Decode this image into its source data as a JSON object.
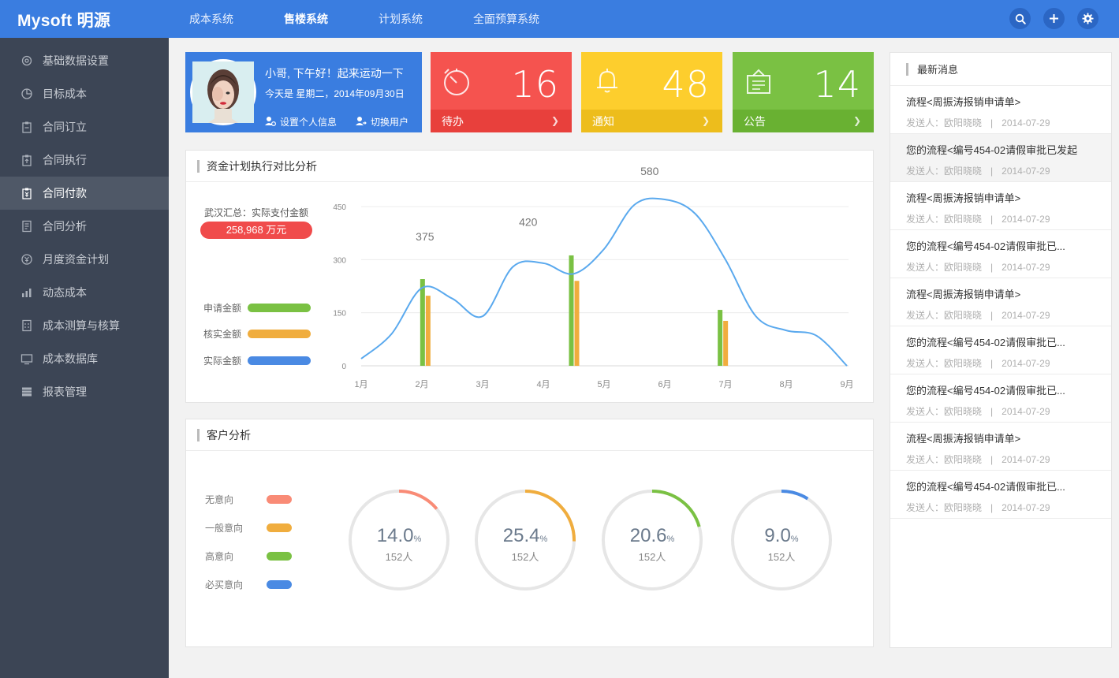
{
  "app": {
    "logo": "Mysoft 明源"
  },
  "topnav": [
    "成本系统",
    "售楼系统",
    "计划系统",
    "全面预算系统"
  ],
  "topnav_active": 1,
  "top_icons": [
    "search-icon",
    "plus-icon",
    "gear-icon"
  ],
  "sidebar": {
    "items": [
      {
        "label": "基础数据设置",
        "icon": "gear-icon"
      },
      {
        "label": "目标成本",
        "icon": "pie-icon"
      },
      {
        "label": "合同订立",
        "icon": "clipboard-icon"
      },
      {
        "label": "合同执行",
        "icon": "clipboard-upload-icon"
      },
      {
        "label": "合同付款",
        "icon": "clipboard-yen-icon"
      },
      {
        "label": "合同分析",
        "icon": "document-icon"
      },
      {
        "label": "月度资金计划",
        "icon": "yen-circle-icon"
      },
      {
        "label": "动态成本",
        "icon": "bars-icon"
      },
      {
        "label": "成本测算与核算",
        "icon": "calculator-icon"
      },
      {
        "label": "成本数据库",
        "icon": "monitor-icon"
      },
      {
        "label": "报表管理",
        "icon": "table-icon"
      }
    ],
    "active": 4
  },
  "profile": {
    "greeting": "小哥, 下午好！起来运动一下",
    "date_line": "今天是 星期二，2014年09月30日",
    "settings_link": "设置个人信息",
    "switch_link": "切换用户"
  },
  "stats": [
    {
      "label": "待办",
      "value": "16",
      "color": "#f5534f",
      "foot_color": "#e8403c",
      "icon": "timer-icon"
    },
    {
      "label": "通知",
      "value": "48",
      "color": "#fdce2d",
      "foot_color": "#edbd1c",
      "icon": "bell-icon"
    },
    {
      "label": "公告",
      "value": "14",
      "color": "#7ac143",
      "foot_color": "#69b132",
      "icon": "board-icon"
    }
  ],
  "fund_panel": {
    "title": "资金计划执行对比分析",
    "total_label": "武汉汇总：实际支付金额",
    "total_value": "258,968 万元",
    "legend": [
      {
        "label": "申请金额",
        "color": "#7ac143"
      },
      {
        "label": "核实金额",
        "color": "#f0ad3e"
      },
      {
        "label": "实际金额",
        "color": "#4a8ae3"
      }
    ]
  },
  "chart_data": {
    "type": "line",
    "x": [
      "1月",
      "2月",
      "3月",
      "4月",
      "5月",
      "6月",
      "7月",
      "8月",
      "9月"
    ],
    "yticks": [
      0,
      150,
      300,
      450
    ],
    "ylim": [
      0,
      450
    ],
    "grid": true,
    "line": {
      "color": "#5aa9ee",
      "points": [
        [
          1.0,
          20
        ],
        [
          1.5,
          90
        ],
        [
          2.0,
          220
        ],
        [
          2.5,
          190
        ],
        [
          3.0,
          140
        ],
        [
          3.5,
          280
        ],
        [
          4.0,
          290
        ],
        [
          4.5,
          260
        ],
        [
          5.0,
          330
        ],
        [
          5.5,
          455
        ],
        [
          6.0,
          480
        ],
        [
          6.5,
          430
        ],
        [
          7.0,
          300
        ],
        [
          7.5,
          140
        ],
        [
          8.0,
          100
        ],
        [
          8.5,
          85
        ],
        [
          9.0,
          0
        ]
      ],
      "labels": [
        {
          "x": 2.05,
          "y": 375,
          "text": "375"
        },
        {
          "x": 3.75,
          "y": 420,
          "text": "420"
        },
        {
          "x": 5.75,
          "y": 580,
          "text": "580"
        }
      ]
    },
    "bars": [
      {
        "x": 2.05,
        "apply": 245,
        "verified": 198
      },
      {
        "x": 4.5,
        "apply": 312,
        "verified": 240
      },
      {
        "x": 6.95,
        "apply": 158,
        "verified": 127
      }
    ]
  },
  "customer_panel": {
    "title": "客户分析",
    "legend": [
      {
        "label": "无意向",
        "color": "#f98b76"
      },
      {
        "label": "一般意向",
        "color": "#f0ad3e"
      },
      {
        "label": "高意向",
        "color": "#7ac143"
      },
      {
        "label": "必买意向",
        "color": "#4a8ae3"
      }
    ],
    "rings": [
      {
        "value": "14.0",
        "percent": 14.0,
        "unit": "%",
        "count": "152人",
        "color": "#f98b76"
      },
      {
        "value": "25.4",
        "percent": 25.4,
        "unit": "%",
        "count": "152人",
        "color": "#f0ad3e"
      },
      {
        "value": "20.6",
        "percent": 20.6,
        "unit": "%",
        "count": "152人",
        "color": "#7ac143"
      },
      {
        "value": "9.0",
        "percent": 9.0,
        "unit": "%",
        "count": "152人",
        "color": "#4a8ae3"
      }
    ]
  },
  "news": {
    "title": "最新消息",
    "items": [
      {
        "title": "流程<周振涛报销申请单>",
        "sender": "发送人：欧阳晓晓",
        "sep": "|",
        "date": "2014-07-29"
      },
      {
        "title": "您的流程<编号454-02请假审批已发起",
        "sender": "发送人：欧阳晓晓",
        "sep": "|",
        "date": "2014-07-29"
      },
      {
        "title": "流程<周振涛报销申请单>",
        "sender": "发送人：欧阳晓晓",
        "sep": "|",
        "date": "2014-07-29"
      },
      {
        "title": "您的流程<编号454-02请假审批已...",
        "sender": "发送人：欧阳晓晓",
        "sep": "|",
        "date": "2014-07-29"
      },
      {
        "title": "流程<周振涛报销申请单>",
        "sender": "发送人：欧阳晓晓",
        "sep": "|",
        "date": "2014-07-29"
      },
      {
        "title": "您的流程<编号454-02请假审批已...",
        "sender": "发送人：欧阳晓晓",
        "sep": "|",
        "date": "2014-07-29"
      },
      {
        "title": "您的流程<编号454-02请假审批已...",
        "sender": "发送人：欧阳晓晓",
        "sep": "|",
        "date": "2014-07-29"
      },
      {
        "title": "流程<周振涛报销申请单>",
        "sender": "发送人：欧阳晓晓",
        "sep": "|",
        "date": "2014-07-29"
      },
      {
        "title": "您的流程<编号454-02请假审批已...",
        "sender": "发送人：欧阳晓晓",
        "sep": "|",
        "date": "2014-07-29"
      }
    ],
    "highlight": 1
  }
}
